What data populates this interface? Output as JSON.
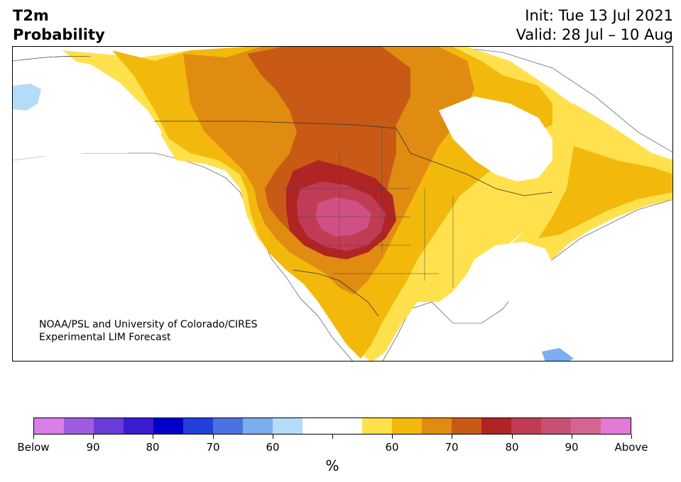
{
  "title": {
    "line1": "T2m",
    "line2": "Probability"
  },
  "dates": {
    "init": "Init: Tue 13 Jul 2021",
    "valid": "Valid: 28 Jul – 10 Aug"
  },
  "credit": {
    "line1": "NOAA/PSL and University of Colorado/CIRES",
    "line2": "Experimental LIM Forecast"
  },
  "colorbar": {
    "colors": [
      "#d87fe8",
      "#a05ce0",
      "#6a3cd8",
      "#3a1dd0",
      "#0000c8",
      "#2340d8",
      "#4b72e0",
      "#7aaeee",
      "#b3dcf8",
      "#ffffff",
      "#ffffff",
      "#ffe14d",
      "#f2b90c",
      "#e08c10",
      "#c85a16",
      "#b02424",
      "#c03c54",
      "#c85074",
      "#d46492",
      "#e27ad6"
    ],
    "labels": [
      "Below",
      "90",
      "80",
      "70",
      "60",
      "",
      "60",
      "70",
      "80",
      "90",
      "Above"
    ],
    "unit": "%"
  },
  "map": {
    "main_feature": "above-normal temperature probability centered over the northern Rockies and Great Plains",
    "colors": {
      "ocean": "#ffffff",
      "yellow": "#ffe14d",
      "gold": "#f2b90c",
      "orange": "#e08c10",
      "burnt": "#c85a16",
      "red": "#b02424",
      "crimson": "#c03c54",
      "magenta": "#d05084",
      "lightblue": "#b3dcf8",
      "blue": "#7aaeee"
    }
  }
}
